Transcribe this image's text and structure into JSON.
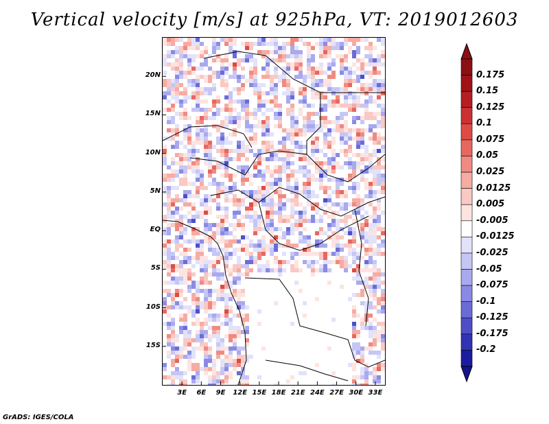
{
  "title": "Vertical velocity [m/s] at 925hPa, VT: 2019012603",
  "credit": "GrADS: IGES/COLA",
  "map": {
    "lon_range": [
      0,
      34.5
    ],
    "lat_range": [
      -20,
      25
    ],
    "lat_ticks": [
      {
        "lat": 20,
        "label": "20N"
      },
      {
        "lat": 15,
        "label": "15N"
      },
      {
        "lat": 10,
        "label": "10N"
      },
      {
        "lat": 5,
        "label": "5N"
      },
      {
        "lat": 0,
        "label": "EQ"
      },
      {
        "lat": -5,
        "label": "5S"
      },
      {
        "lat": -10,
        "label": "10S"
      },
      {
        "lat": -15,
        "label": "15S"
      }
    ],
    "lon_ticks": [
      {
        "lon": 3,
        "label": "3E"
      },
      {
        "lon": 6,
        "label": "6E"
      },
      {
        "lon": 9,
        "label": "9E"
      },
      {
        "lon": 12,
        "label": "12E"
      },
      {
        "lon": 15,
        "label": "15E"
      },
      {
        "lon": 18,
        "label": "18E"
      },
      {
        "lon": 21,
        "label": "21E"
      },
      {
        "lon": 24,
        "label": "24E"
      },
      {
        "lon": 27,
        "label": "27E"
      },
      {
        "lon": 30,
        "label": "30E"
      },
      {
        "lon": 33,
        "label": "33E"
      }
    ]
  },
  "colorbar": {
    "levels": [
      {
        "label": "0.175",
        "color": "#a01218"
      },
      {
        "label": "0.15",
        "color": "#b51e22"
      },
      {
        "label": "0.125",
        "color": "#cc3030"
      },
      {
        "label": "0.1",
        "color": "#de4a44"
      },
      {
        "label": "0.075",
        "color": "#e8675f"
      },
      {
        "label": "0.05",
        "color": "#f08a80"
      },
      {
        "label": "0.025",
        "color": "#f6aba3"
      },
      {
        "label": "0.0125",
        "color": "#f9c9c4"
      },
      {
        "label": "0.005",
        "color": "#fde4e1"
      },
      {
        "label": "-0.005",
        "color": "#ffffff"
      },
      {
        "label": "-0.0125",
        "color": "#e2e2fb"
      },
      {
        "label": "-0.025",
        "color": "#c6c6f6"
      },
      {
        "label": "-0.05",
        "color": "#a9a9ee"
      },
      {
        "label": "-0.075",
        "color": "#8a8ae4"
      },
      {
        "label": "-0.1",
        "color": "#6b6bd8"
      },
      {
        "label": "-0.125",
        "color": "#4e4ec8"
      },
      {
        "label": "-0.175",
        "color": "#3232b6"
      },
      {
        "label": "-0.2",
        "color": "#1c1ca0"
      }
    ],
    "top_color": "#8c0f14",
    "bottom_color": "#14148c"
  }
}
